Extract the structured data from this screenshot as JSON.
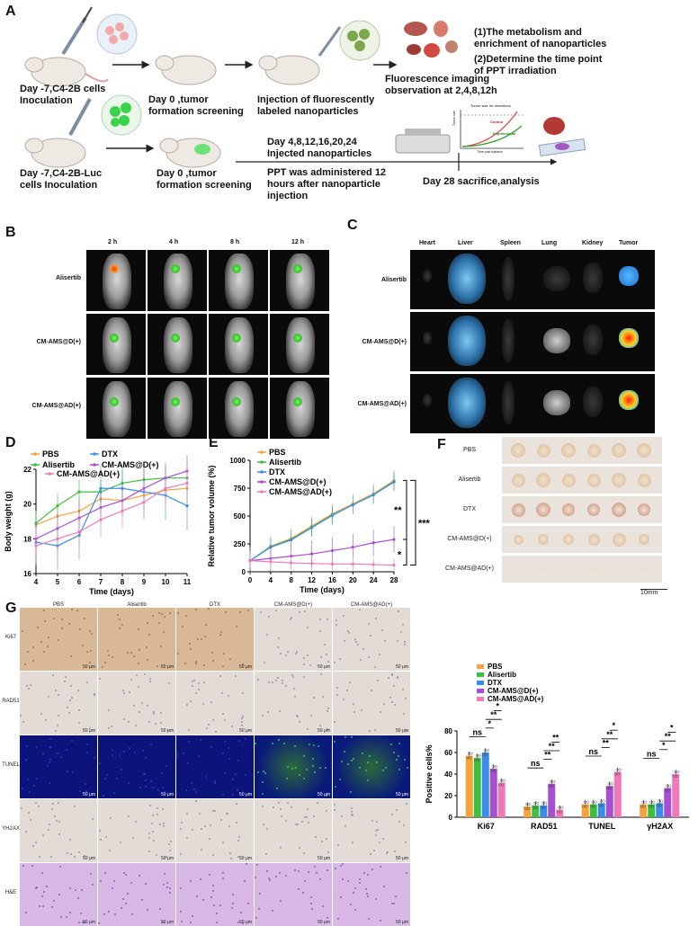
{
  "panels": {
    "A": "A",
    "B": "B",
    "C": "C",
    "D": "D",
    "E": "E",
    "F": "F",
    "G": "G"
  },
  "panelA": {
    "step1": "Day -7,C4-2B cells\nInoculation",
    "step2": "Day 0 ,tumor\nformation screening",
    "step3": "Injection of fluorescently\nlabeled nanoparticles",
    "step4": "Fluorescence imaging\nobservation at 2,4,8,12h",
    "note1": "(1)The metabolism and\nenrichment of nanoparticles",
    "note2": "(2)Determine the time point\nof PPT irradiation",
    "step5": "Day -7,C4-2B-Luc\ncells Inoculation",
    "step6": "Day 0 ,tumor\nformation screening",
    "step7": "Day 4,8,12,16,20,24\nInjected nanoparticles",
    "step8": "PPT was administered 12\nhours after nanoparticle\ninjection",
    "step9": "Day 28 sacrifice,analysis",
    "mini_title": "Tumor size for resections",
    "mini_control": "Control",
    "mini_exp": "Experimental",
    "mini_x": "Time post injection",
    "mini_y": "Tumor size"
  },
  "panelB": {
    "times": [
      "2 h",
      "4 h",
      "8 h",
      "12 h"
    ],
    "rows": [
      "Alisertib",
      "CM-AMS@D(+)",
      "CM-AMS@AD(+)"
    ]
  },
  "panelC": {
    "organs": [
      "Heart",
      "Liver",
      "Spleen",
      "Lung",
      "Kidney",
      "Tumor"
    ],
    "rows": [
      "Alisertib",
      "CM-AMS@D(+)",
      "CM-AMS@AD(+)"
    ]
  },
  "panelF": {
    "rows": [
      "PBS",
      "Alisertib",
      "DTX",
      "CM-AMS@D(+)",
      "CM-AMS@AD(+)"
    ],
    "scale": "10mm"
  },
  "panelG": {
    "cols": [
      "PBS",
      "Alisertib",
      "DTX",
      "CM-AMS@D(+)",
      "CM-AMS@AD(+)"
    ],
    "rows": [
      "Ki67",
      "RAD51",
      "TUNEL",
      "YH2AX",
      "H&E"
    ],
    "scale": "50 μm"
  },
  "colors": {
    "PBS": "#f7a23b",
    "Alisertib": "#3fbf3f",
    "DTX": "#3b8ee8",
    "CM-AMS@D(+)": "#a64fd1",
    "CM-AMS@AD(+)": "#f07ab8"
  },
  "chart_data": [
    {
      "id": "D",
      "type": "line",
      "xlabel": "Time (days)",
      "ylabel": "Body weight (g)",
      "x": [
        4,
        5,
        6,
        7,
        8,
        9,
        10,
        11
      ],
      "xlim": [
        4,
        11
      ],
      "ylim": [
        16,
        22
      ],
      "yticks": [
        16,
        18,
        20,
        22
      ],
      "series": [
        {
          "name": "PBS",
          "values": [
            18.8,
            19.3,
            19.6,
            20.3,
            20.2,
            20.5,
            20.8,
            20.9
          ]
        },
        {
          "name": "Alisertib",
          "values": [
            18.9,
            19.9,
            20.7,
            20.7,
            21.2,
            21.4,
            21.5,
            21.5
          ]
        },
        {
          "name": "DTX",
          "values": [
            17.8,
            17.6,
            18.2,
            20.9,
            20.9,
            20.7,
            20.5,
            19.9
          ]
        },
        {
          "name": "CM-AMS@D(+)",
          "values": [
            18.0,
            18.6,
            19.2,
            19.8,
            20.2,
            20.9,
            21.5,
            21.9
          ]
        },
        {
          "name": "CM-AMS@AD(+)",
          "values": [
            17.6,
            18.0,
            18.4,
            19.1,
            19.6,
            20.1,
            20.9,
            21.2
          ]
        }
      ]
    },
    {
      "id": "E",
      "type": "line",
      "xlabel": "Time (days)",
      "ylabel": "Relative tumor volume (%)",
      "x": [
        0,
        4,
        8,
        12,
        16,
        20,
        24,
        28
      ],
      "xlim": [
        0,
        28
      ],
      "ylim": [
        0,
        1000
      ],
      "yticks": [
        0,
        250,
        500,
        750,
        1000
      ],
      "series": [
        {
          "name": "PBS",
          "values": [
            100,
            230,
            300,
            410,
            520,
            610,
            700,
            820
          ]
        },
        {
          "name": "Alisertib",
          "values": [
            100,
            225,
            290,
            400,
            510,
            600,
            690,
            810
          ]
        },
        {
          "name": "DTX",
          "values": [
            100,
            220,
            285,
            395,
            505,
            600,
            690,
            805
          ]
        },
        {
          "name": "CM-AMS@D(+)",
          "values": [
            100,
            120,
            140,
            160,
            190,
            220,
            260,
            290
          ]
        },
        {
          "name": "CM-AMS@AD(+)",
          "values": [
            100,
            90,
            80,
            75,
            70,
            70,
            65,
            60
          ]
        }
      ],
      "annotations": [
        "**",
        "***",
        "*"
      ]
    },
    {
      "id": "G",
      "type": "bar",
      "ylabel": "Positive cells%",
      "categories": [
        "Ki67",
        "RAD51",
        "TUNEL",
        "γH2AX"
      ],
      "ylim": [
        0,
        80
      ],
      "yticks": [
        0,
        20,
        40,
        60,
        80
      ],
      "series": [
        {
          "name": "PBS",
          "values": [
            57,
            10,
            12,
            12
          ]
        },
        {
          "name": "Alisertib",
          "values": [
            55,
            11,
            12,
            12
          ]
        },
        {
          "name": "DTX",
          "values": [
            60,
            11,
            13,
            13
          ]
        },
        {
          "name": "CM-AMS@D(+)",
          "values": [
            45,
            31,
            29,
            27
          ]
        },
        {
          "name": "CM-AMS@AD(+)",
          "values": [
            32,
            7,
            42,
            40
          ]
        }
      ],
      "sig": [
        "ns",
        "*",
        "**",
        "*",
        "ns",
        "**",
        "**",
        "**",
        "ns",
        "**",
        "**",
        "*",
        "ns",
        "*",
        "**",
        "*"
      ]
    }
  ]
}
